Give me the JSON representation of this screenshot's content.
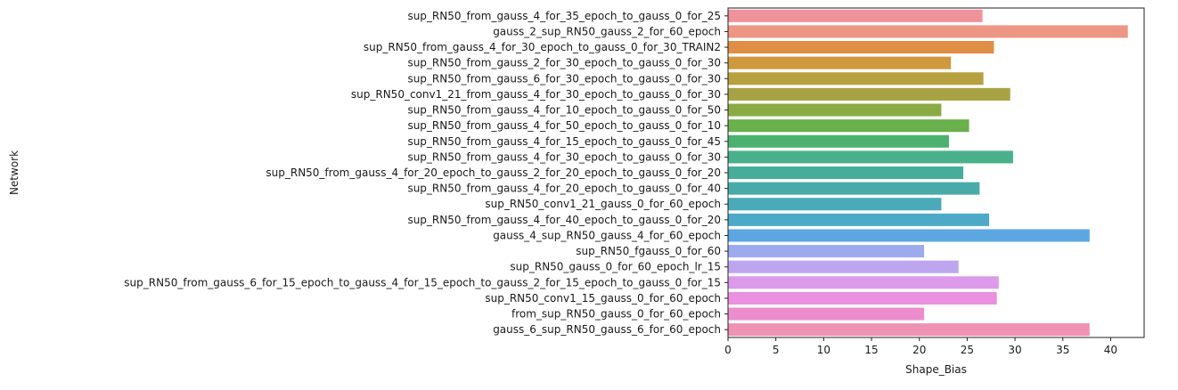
{
  "chart_data": {
    "type": "bar",
    "orientation": "horizontal",
    "title": "",
    "xlabel": "Shape_Bias",
    "ylabel": "Network",
    "xlim": [
      0,
      43.5
    ],
    "xticks": [
      0,
      5,
      10,
      15,
      20,
      25,
      30,
      35,
      40
    ],
    "grid": false,
    "categories": [
      "sup_RN50_from_gauss_4_for_35_epoch_to_gauss_0_for_25",
      "gauss_2_sup_RN50_gauss_2_for_60_epoch",
      "sup_RN50_from_gauss_4_for_30_epoch_to_gauss_0_for_30_TRAIN2",
      "sup_RN50_from_gauss_2_for_30_epoch_to_gauss_0_for_30",
      "sup_RN50_from_gauss_6_for_30_epoch_to_gauss_0_for_30",
      "sup_RN50_conv1_21_from_gauss_4_for_30_epoch_to_gauss_0_for_30",
      "sup_RN50_from_gauss_4_for_10_epoch_to_gauss_0_for_50",
      "sup_RN50_from_gauss_4_for_50_epoch_to_gauss_0_for_10",
      "sup_RN50_from_gauss_4_for_15_epoch_to_gauss_0_for_45",
      "sup_RN50_from_gauss_4_for_30_epoch_to_gauss_0_for_30",
      "sup_RN50_from_gauss_4_for_20_epoch_to_gauss_2_for_20_epoch_to_gauss_0_for_20",
      "sup_RN50_from_gauss_4_for_20_epoch_to_gauss_0_for_40",
      "sup_RN50_conv1_21_gauss_0_for_60_epoch",
      "sup_RN50_from_gauss_4_for_40_epoch_to_gauss_0_for_20",
      "gauss_4_sup_RN50_gauss_4_for_60_epoch",
      "sup_RN50_fgauss_0_for_60",
      "sup_RN50_gauss_0_for_60_epoch_lr_15",
      "sup_RN50_from_gauss_6_for_15_epoch_to_gauss_4_for_15_epoch_to_gauss_2_for_15_epoch_to_gauss_0_for_15",
      "sup_RN50_conv1_15_gauss_0_for_60_epoch",
      "from_sup_RN50_gauss_0_for_60_epoch",
      "gauss_6_sup_RN50_gauss_6_for_60_epoch"
    ],
    "values": [
      26.6,
      41.8,
      27.8,
      23.3,
      26.7,
      29.5,
      22.3,
      25.2,
      23.1,
      29.8,
      24.6,
      26.3,
      22.3,
      27.3,
      37.8,
      20.5,
      24.1,
      28.3,
      28.1,
      20.5,
      37.8
    ],
    "colors": [
      "#f0929b",
      "#ec9784",
      "#e08d46",
      "#cf9a3e",
      "#b6a040",
      "#a7a345",
      "#8aaa43",
      "#6ab04c",
      "#4cb16f",
      "#4ab08c",
      "#47ad9b",
      "#48abaa",
      "#4aaab8",
      "#4ca9c8",
      "#5ca7e2",
      "#9eaaee",
      "#bea5ef",
      "#de9aea",
      "#e990de",
      "#ec8ecd",
      "#ee91b2"
    ]
  }
}
